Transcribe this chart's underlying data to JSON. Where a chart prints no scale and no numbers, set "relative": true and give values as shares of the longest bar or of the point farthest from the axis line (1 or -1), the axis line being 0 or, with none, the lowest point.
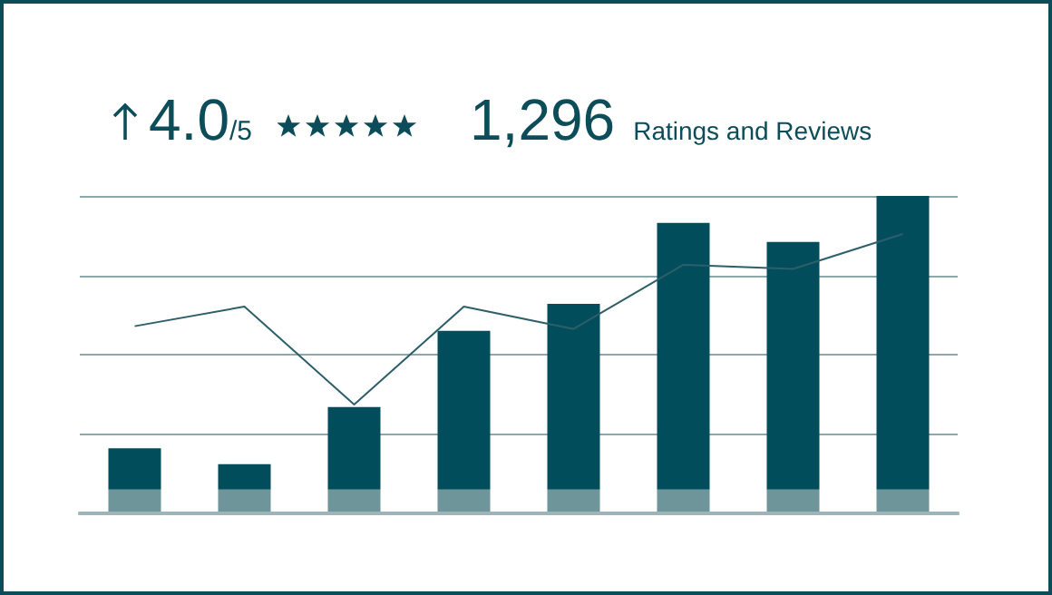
{
  "chart_data": [
    {
      "type": "bar",
      "stacked": true,
      "relative": true,
      "grid": "y",
      "annotations": [
        "4.0",
        "/5",
        "1,296",
        "Ratings and Reviews"
      ],
      "categories": [
        null,
        null,
        null,
        null,
        null,
        null,
        null,
        null
      ],
      "series": [
        {
          "color": "#6e9599",
          "values": [
            0.075,
            0.075,
            0.075,
            0.075,
            0.075,
            0.075,
            0.075,
            0.075
          ]
        },
        {
          "color": "#024d5c",
          "values": [
            0.13,
            0.08,
            0.26,
            0.5,
            0.585,
            0.84,
            0.78,
            0.925
          ]
        }
      ]
    },
    {
      "type": "line",
      "relative": true,
      "marker": "none",
      "categories": [
        null,
        null,
        null,
        null,
        null,
        null,
        null,
        null
      ],
      "series": [
        {
          "color": "#2d5f6a",
          "values": [
            0.67,
            0.74,
            0.39,
            0.74,
            0.66,
            0.89,
            0.875,
            1
          ]
        }
      ]
    }
  ]
}
